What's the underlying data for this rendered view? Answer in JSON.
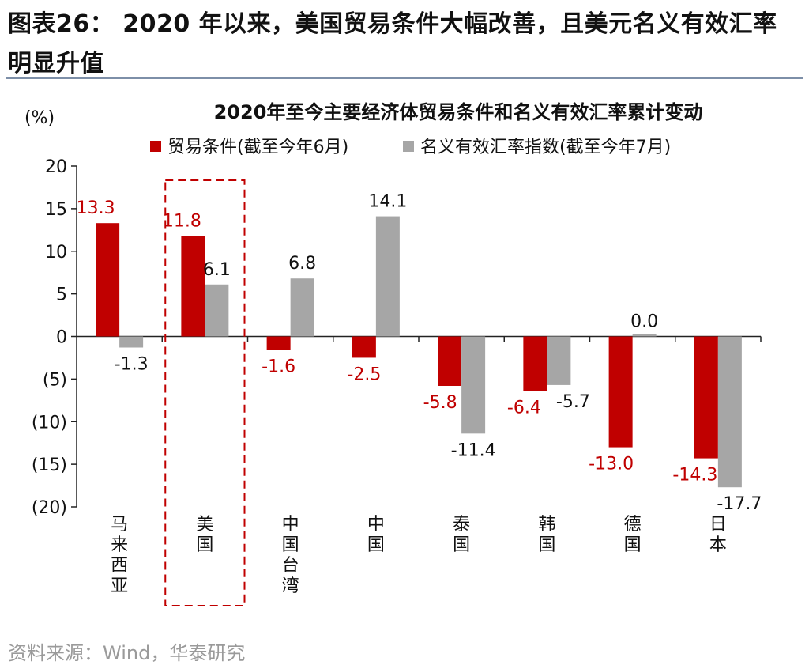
{
  "figure_title": "图表26： 2020 年以来，美国贸易条件大幅改善，且美元名义有效汇率明显升值",
  "source": "资料来源：Wind，华泰研究",
  "colors": {
    "series_1": "#c00000",
    "series_2": "#a6a6a6",
    "label_1": "#c00000",
    "label_2": "#111111",
    "highlight": "#c00000"
  },
  "chart_data": {
    "type": "bar",
    "title": "2020年至今主要经济体贸易条件和名义有效汇率累计变动",
    "unit_label": "(%)",
    "ylim": [
      -20,
      20
    ],
    "yticks": [
      "20",
      "15",
      "10",
      "5",
      "0",
      "(5)",
      "(10)",
      "(15)",
      "(20)"
    ],
    "ytick_values": [
      20,
      15,
      10,
      5,
      0,
      -5,
      -10,
      -15,
      -20
    ],
    "categories": [
      "马来西亚",
      "美国",
      "中国台湾",
      "中国",
      "泰国",
      "韩国",
      "德国",
      "日本"
    ],
    "highlight_category": "美国",
    "legend_position": "top",
    "grid": false,
    "series": [
      {
        "name": "贸易条件(截至今年6月)",
        "values": [
          13.3,
          11.8,
          -1.6,
          -2.5,
          -5.8,
          -6.4,
          -13.0,
          -14.3
        ],
        "labels": [
          "13.3",
          "11.8",
          "-1.6",
          "-2.5",
          "-5.8",
          "-6.4",
          "-13.0",
          "-14.3"
        ]
      },
      {
        "name": "名义有效汇率指数(截至今年7月)",
        "values": [
          -1.3,
          6.1,
          6.8,
          14.1,
          -11.4,
          -5.7,
          0.0,
          -17.7
        ],
        "labels": [
          "-1.3",
          "6.1",
          "6.8",
          "14.1",
          "-11.4",
          "-5.7",
          "0.0",
          "-17.7"
        ]
      }
    ]
  }
}
